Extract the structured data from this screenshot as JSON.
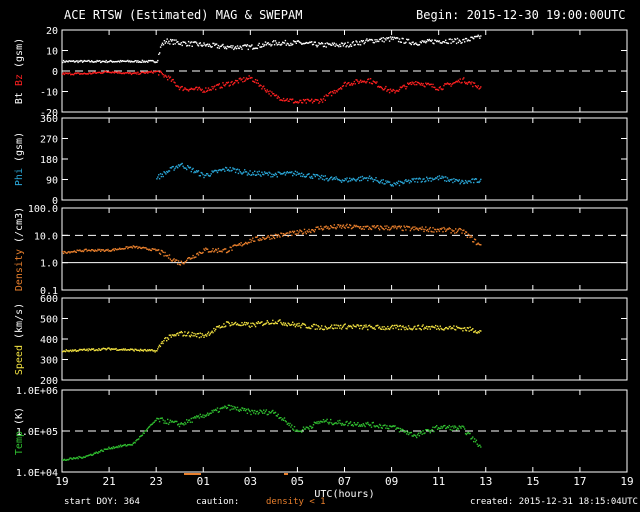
{
  "header": {
    "title": "ACE RTSW (Estimated) MAG & SWEPAM",
    "begin": "Begin: 2015-12-30 19:00:00UTC"
  },
  "footer": {
    "start_doy": "start DOY: 364",
    "caution": "caution:",
    "density_note": "density < 1",
    "created": "created: 2015-12-31 18:15:04UTC"
  },
  "colors": {
    "bt": "#ffffff",
    "bz": "#ff2020",
    "phi": "#2aa7d8",
    "density": "#e87f2c",
    "speed": "#f0e040",
    "temp": "#30c030",
    "frame": "#ffffff",
    "background": "#000000"
  },
  "chart_data": [
    {
      "type": "scatter",
      "ylabel_parts": [
        "Bt",
        "Bz",
        "(gsm)"
      ],
      "ylim": [
        -20,
        20
      ],
      "yticks": [
        "20",
        "10",
        "0",
        "-10",
        "-20"
      ],
      "ytick_values": [
        20,
        10,
        0,
        -10,
        -20
      ],
      "dashed_at": [
        0
      ],
      "series": [
        {
          "name": "Bt",
          "color_key": "bt",
          "x": [
            0,
            1,
            2,
            3,
            4,
            4.2,
            4.4,
            5,
            6,
            7,
            8,
            9,
            10,
            11,
            12,
            13,
            14,
            15,
            16,
            17,
            17.8
          ],
          "y": [
            5,
            5,
            5,
            5,
            5,
            13,
            15,
            14,
            13,
            12,
            12,
            14,
            14,
            13,
            13,
            15,
            16,
            14,
            15,
            15,
            17
          ]
        },
        {
          "name": "Bz",
          "color_key": "bz",
          "x": [
            0,
            1,
            2,
            3,
            4,
            4.5,
            5,
            6,
            7,
            8,
            9,
            10,
            11,
            12,
            13,
            14,
            15,
            16,
            17,
            17.8
          ],
          "y": [
            -1,
            -1,
            0,
            -1,
            0,
            -3,
            -8,
            -9,
            -6,
            -3,
            -12,
            -15,
            -14,
            -6,
            -4,
            -10,
            -5,
            -8,
            -4,
            -8
          ]
        }
      ]
    },
    {
      "type": "scatter",
      "ylabel_parts": [
        "Phi",
        "(gsm)"
      ],
      "ylim": [
        0,
        360
      ],
      "yticks": [
        "360",
        "270",
        "180",
        "90",
        "0"
      ],
      "ytick_values": [
        360,
        270,
        180,
        90,
        0
      ],
      "series": [
        {
          "name": "Phi",
          "color_key": "phi",
          "x": [
            4,
            5,
            6,
            7,
            8,
            9,
            10,
            11,
            12,
            13,
            14,
            15,
            16,
            17,
            17.8
          ],
          "y": [
            100,
            160,
            110,
            140,
            120,
            115,
            120,
            100,
            90,
            100,
            70,
            90,
            100,
            80,
            90
          ]
        }
      ]
    },
    {
      "type": "scatter",
      "ylabel_parts": [
        "Density",
        "(/cm3)"
      ],
      "yscale": "log",
      "ylim": [
        0.1,
        100
      ],
      "yticks": [
        "100.0",
        "10.0",
        "1.0",
        "0.1"
      ],
      "ytick_values": [
        100,
        10,
        1,
        0.1
      ],
      "dashed_at": [
        10
      ],
      "solid_at": [
        1
      ],
      "series": [
        {
          "name": "Density",
          "color_key": "density",
          "x": [
            0,
            1,
            2,
            3,
            4,
            5,
            6,
            7,
            8,
            9,
            10,
            11,
            12,
            13,
            14,
            15,
            16,
            17,
            17.8
          ],
          "y": [
            2.5,
            3,
            3,
            4,
            3,
            1,
            3,
            3,
            7,
            10,
            13,
            20,
            22,
            20,
            20,
            18,
            17,
            15,
            4
          ]
        }
      ]
    },
    {
      "type": "scatter",
      "ylabel_parts": [
        "Speed",
        "(km/s)"
      ],
      "ylim": [
        200,
        600
      ],
      "yticks": [
        "600",
        "500",
        "400",
        "300",
        "200"
      ],
      "ytick_values": [
        600,
        500,
        400,
        300,
        200
      ],
      "series": [
        {
          "name": "Speed",
          "color_key": "speed",
          "x": [
            0,
            1,
            2,
            3,
            4,
            4.3,
            5,
            6,
            7,
            8,
            9,
            10,
            11,
            12,
            13,
            14,
            15,
            16,
            17,
            17.8
          ],
          "y": [
            345,
            350,
            355,
            350,
            345,
            400,
            430,
            420,
            480,
            470,
            490,
            470,
            460,
            465,
            460,
            458,
            460,
            460,
            455,
            440
          ]
        }
      ]
    },
    {
      "type": "scatter",
      "ylabel_parts": [
        "Temp",
        "(K)"
      ],
      "yscale": "log",
      "ylim": [
        10000,
        1000000
      ],
      "yticks": [
        "1.0E+06",
        "1.0E+05",
        "1.0E+04"
      ],
      "ytick_values": [
        1000000,
        100000,
        10000
      ],
      "dashed_at": [
        100000
      ],
      "series": [
        {
          "name": "Temp",
          "color_key": "temp",
          "x": [
            0,
            1,
            2,
            3,
            4,
            5,
            6,
            7,
            8,
            9,
            10,
            11,
            12,
            13,
            14,
            15,
            16,
            17,
            17.8
          ],
          "y": [
            20000,
            25000,
            40000,
            50000,
            200000,
            150000,
            250000,
            400000,
            300000,
            300000,
            100000,
            180000,
            160000,
            150000,
            130000,
            80000,
            130000,
            120000,
            40000
          ]
        }
      ]
    }
  ],
  "xaxis": {
    "label": "UTC(hours)",
    "ticks": [
      "19",
      "21",
      "23",
      "01",
      "03",
      "05",
      "07",
      "09",
      "11",
      "13",
      "15",
      "17",
      "19"
    ],
    "tick_hours": [
      0,
      2,
      4,
      6,
      8,
      10,
      12,
      14,
      16,
      18,
      20,
      22,
      24
    ],
    "range_hours": [
      0,
      24
    ]
  }
}
